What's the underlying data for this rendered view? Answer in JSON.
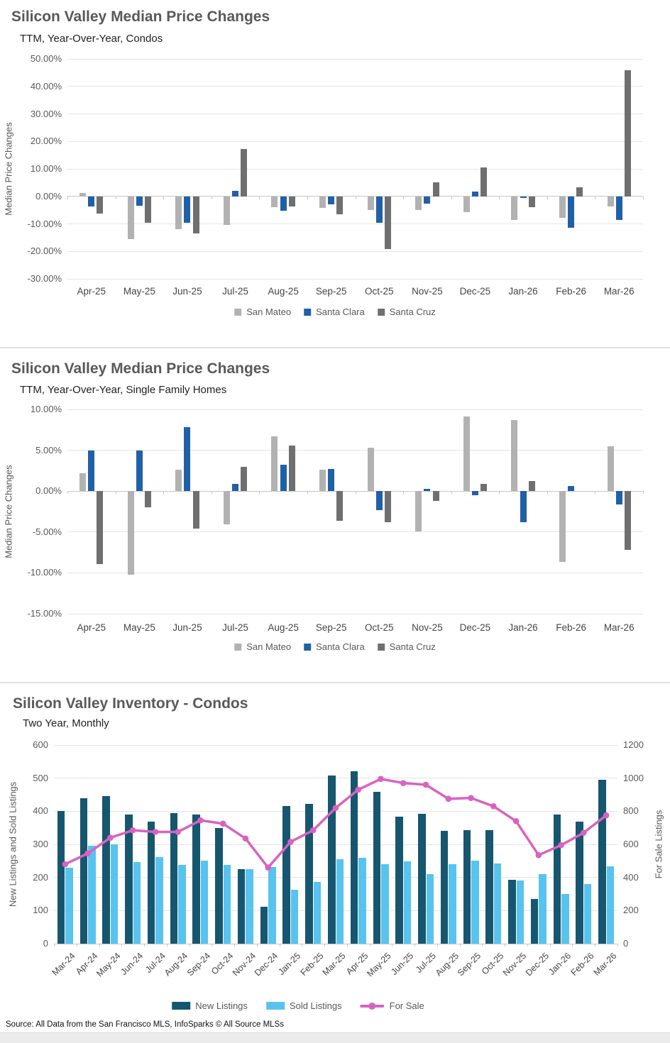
{
  "page": {
    "source_note": "Source: All Data from the San Francisco MLS, InfoSparks © All Source MLSs"
  },
  "chart_data": [
    {
      "type": "bar",
      "title": "Silicon Valley Median Price Changes",
      "subtitle": "TTM, Year-Over-Year, Condos",
      "ylabel": "Median Price Changes",
      "ylim": [
        -30,
        50
      ],
      "grid": true,
      "legend_position": "bottom",
      "yticks": [
        {
          "v": 50,
          "label": "50.00%"
        },
        {
          "v": 40,
          "label": "40.00%"
        },
        {
          "v": 30,
          "label": "30.00%"
        },
        {
          "v": 20,
          "label": "20.00%"
        },
        {
          "v": 10,
          "label": "10.00%"
        },
        {
          "v": 0,
          "label": "0.00%"
        },
        {
          "v": -10,
          "label": "-10.00%"
        },
        {
          "v": -20,
          "label": "-20.00%"
        },
        {
          "v": -30,
          "label": "-30.00%"
        }
      ],
      "categories": [
        "Apr-25",
        "May-25",
        "Jun-25",
        "Jul-25",
        "Aug-25",
        "Sep-25",
        "Oct-25",
        "Nov-25",
        "Dec-25",
        "Jan-26",
        "Feb-26",
        "Mar-26"
      ],
      "series": [
        {
          "name": "San Mateo",
          "color": "#B2B2B2",
          "values": [
            1.2,
            -15.5,
            -12.0,
            -10.5,
            -4.0,
            -4.2,
            -4.9,
            -4.9,
            -5.8,
            -8.5,
            -7.8,
            -3.6
          ]
        },
        {
          "name": "Santa Clara",
          "color": "#1F60A9",
          "values": [
            -3.8,
            -3.4,
            -9.6,
            1.9,
            -5.3,
            -2.9,
            -9.5,
            -2.6,
            1.7,
            -0.7,
            -11.3,
            -8.5
          ]
        },
        {
          "name": "Santa Cruz",
          "color": "#6F6F6F",
          "values": [
            -6.2,
            -9.5,
            -13.5,
            17.2,
            -3.8,
            -6.5,
            -19.2,
            5.2,
            10.5,
            -3.9,
            3.4,
            46.0
          ]
        }
      ]
    },
    {
      "type": "bar",
      "title": "Silicon Valley Median Price Changes",
      "subtitle": "TTM, Year-Over-Year, Single Family Homes",
      "ylabel": "Median Price Changes",
      "ylim": [
        -15,
        10
      ],
      "grid": true,
      "legend_position": "bottom",
      "yticks": [
        {
          "v": 10,
          "label": "10.00%"
        },
        {
          "v": 5,
          "label": "5.00%"
        },
        {
          "v": 0,
          "label": "0.00%"
        },
        {
          "v": -5,
          "label": "-5.00%"
        },
        {
          "v": -10,
          "label": "-10.00%"
        },
        {
          "v": -15,
          "label": "-15.00%"
        }
      ],
      "categories": [
        "Apr-25",
        "May-25",
        "Jun-25",
        "Jul-25",
        "Aug-25",
        "Sep-25",
        "Oct-25",
        "Nov-25",
        "Dec-25",
        "Jan-26",
        "Feb-26",
        "Mar-26"
      ],
      "series": [
        {
          "name": "San Mateo",
          "color": "#B2B2B2",
          "values": [
            2.2,
            -10.2,
            2.6,
            -4.1,
            6.7,
            2.6,
            5.3,
            -4.9,
            9.1,
            8.7,
            -8.7,
            5.5
          ]
        },
        {
          "name": "Santa Clara",
          "color": "#1F60A9",
          "values": [
            5.0,
            5.0,
            7.8,
            0.9,
            3.2,
            2.7,
            -2.3,
            0.3,
            -0.5,
            -3.8,
            0.6,
            -1.6
          ]
        },
        {
          "name": "Santa Cruz",
          "color": "#6F6F6F",
          "values": [
            -8.9,
            -2.0,
            -4.6,
            3.0,
            5.6,
            -3.6,
            -3.8,
            -1.2,
            0.9,
            1.2,
            0,
            -7.2
          ]
        }
      ]
    },
    {
      "type": "bar-line",
      "title": "Silicon Valley Inventory - Condos",
      "subtitle": "Two Year, Monthly",
      "ylabel_left": "New Listings and Sold Listings",
      "ylabel_right": "For Sale Listings",
      "ylim_left": [
        0,
        600
      ],
      "ylim_right": [
        0,
        1200
      ],
      "grid": true,
      "legend_position": "bottom",
      "yticks_left": [
        {
          "v": 600,
          "label": "600"
        },
        {
          "v": 500,
          "label": "500"
        },
        {
          "v": 400,
          "label": "400"
        },
        {
          "v": 300,
          "label": "300"
        },
        {
          "v": 200,
          "label": "200"
        },
        {
          "v": 100,
          "label": "100"
        },
        {
          "v": 0,
          "label": "0"
        }
      ],
      "yticks_right": [
        {
          "v": 1200,
          "label": "1200"
        },
        {
          "v": 1000,
          "label": "1000"
        },
        {
          "v": 800,
          "label": "800"
        },
        {
          "v": 600,
          "label": "600"
        },
        {
          "v": 400,
          "label": "400"
        },
        {
          "v": 200,
          "label": "200"
        },
        {
          "v": 0,
          "label": "0"
        }
      ],
      "categories": [
        "Mar-24",
        "Apr-24",
        "May-24",
        "Jun-24",
        "Jul-24",
        "Aug-24",
        "Sep-24",
        "Oct-24",
        "Nov-24",
        "Dec-24",
        "Jan-25",
        "Feb-25",
        "Mar-25",
        "Apr-25",
        "May-25",
        "Jun-25",
        "Jul-25",
        "Aug-25",
        "Sep-25",
        "Oct-25",
        "Nov-25",
        "Dec-25",
        "Jan-26",
        "Feb-26",
        "Mar-26"
      ],
      "series": [
        {
          "name": "New Listings",
          "kind": "bar",
          "axis": "left",
          "color": "#16566F",
          "values": [
            400,
            439,
            445,
            391,
            368,
            395,
            389,
            350,
            226,
            111,
            416,
            423,
            507,
            520,
            459,
            384,
            393,
            341,
            343,
            343,
            193,
            136,
            389,
            368,
            496
          ]
        },
        {
          "name": "Sold Listings",
          "kind": "bar",
          "axis": "left",
          "color": "#58C3EE",
          "values": [
            230,
            296,
            299,
            246,
            262,
            237,
            251,
            238,
            224,
            232,
            162,
            186,
            255,
            259,
            240,
            249,
            209,
            239,
            251,
            243,
            191,
            209,
            150,
            180,
            234
          ]
        },
        {
          "name": "For Sale",
          "kind": "line",
          "axis": "right",
          "color": "#D763C1",
          "values": [
            480,
            545,
            640,
            685,
            675,
            675,
            745,
            725,
            635,
            460,
            615,
            685,
            820,
            930,
            995,
            970,
            960,
            875,
            880,
            830,
            740,
            535,
            595,
            670,
            775
          ]
        }
      ]
    }
  ]
}
